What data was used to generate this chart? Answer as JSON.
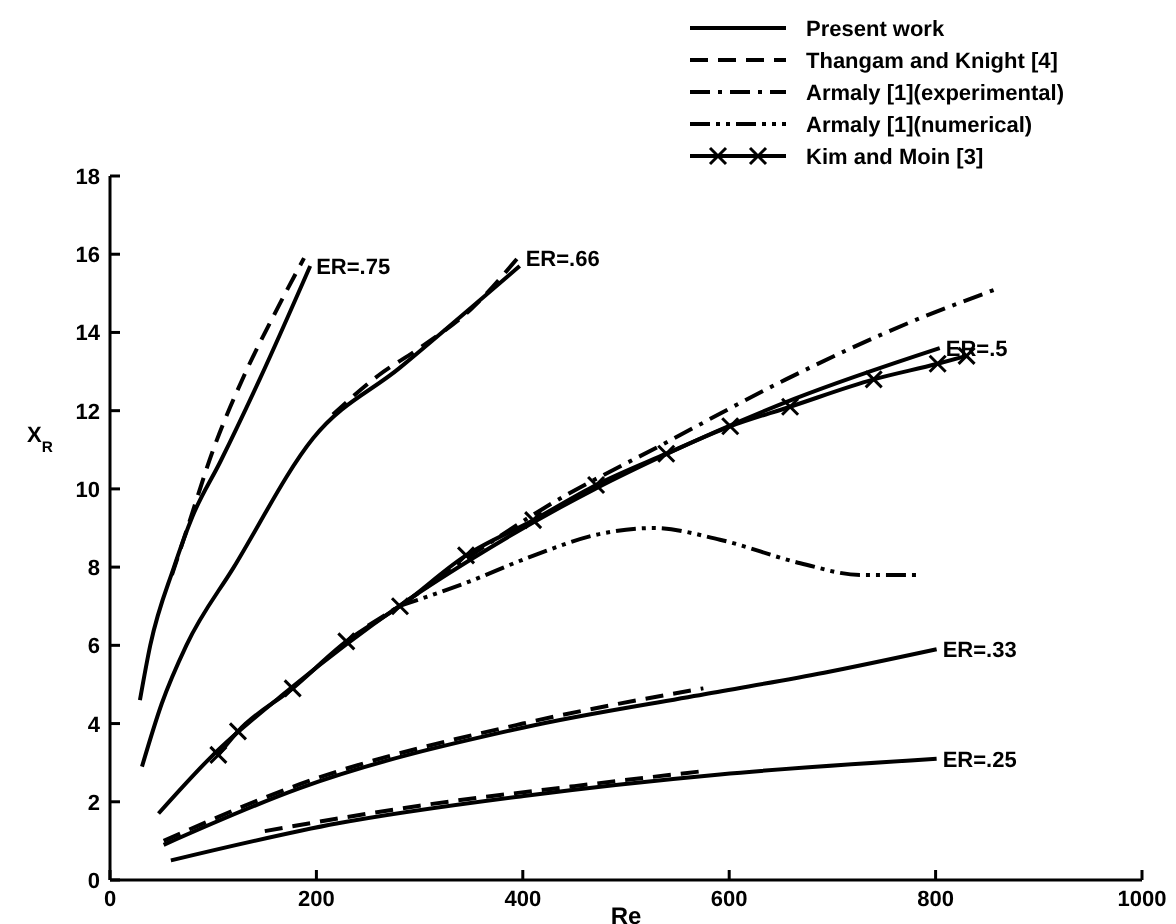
{
  "chart_data": {
    "type": "line",
    "xlabel": "Re",
    "ylabel": "X$_{R}$",
    "xlim": [
      0,
      1000
    ],
    "ylim": [
      0,
      18
    ],
    "xticks": [
      0,
      200,
      400,
      600,
      800,
      1000
    ],
    "yticks": [
      0,
      2,
      4,
      6,
      8,
      10,
      12,
      14,
      16,
      18
    ],
    "grid": false,
    "legend": "top right",
    "marker": "none",
    "series": [
      {
        "name": "Present work",
        "color": "#000000",
        "line_style": "solid",
        "x": [
          29,
          39,
          62,
          80,
          107,
          145,
          194
        ],
        "values": [
          4.6,
          6.0,
          8.0,
          9.3,
          10.7,
          12.8,
          15.7
        ]
      },
      {
        "name": "Thangam  and Knight [4]",
        "color": "#000000",
        "line_style": "dashed",
        "x": [
          60,
          75,
          100,
          130,
          160,
          188
        ],
        "values": [
          7.8,
          9.0,
          11.0,
          12.9,
          14.5,
          15.9
        ]
      },
      {
        "name": "Armaly [1](experimental)",
        "color": "#000000",
        "line_style": "dashdot",
        "x": [
          250,
          280,
          350,
          420,
          540,
          655,
          779,
          858
        ],
        "values": [
          6.5,
          7.0,
          8.3,
          9.5,
          11.2,
          12.8,
          14.3,
          15.1
        ]
      },
      {
        "name": "Armaly [1](numerical)",
        "color": "#000000",
        "line_style": "dashdotdot",
        "x": [
          280,
          345,
          411,
          475,
          527,
          591,
          669,
          727,
          785
        ],
        "values": [
          7.0,
          7.6,
          8.3,
          8.85,
          9.0,
          8.7,
          8.1,
          7.8,
          7.8
        ]
      },
      {
        "name": "Kim and Moin [3]",
        "color": "#000000",
        "line_style": "solid",
        "marker": "cross",
        "x": [
          105,
          124,
          177,
          229,
          281,
          345,
          410,
          471,
          539,
          601,
          659,
          740,
          802,
          830
        ],
        "values": [
          3.2,
          3.8,
          4.9,
          6.1,
          7.0,
          8.3,
          9.2,
          10.1,
          10.9,
          11.6,
          12.1,
          12.8,
          13.2,
          13.4
        ]
      },
      {
        "color": "#000000",
        "line_style": "solid",
        "x": [
          31,
          50,
          74,
          120,
          197,
          281,
          397
        ],
        "values": [
          2.9,
          4.5,
          6.0,
          8.0,
          11.3,
          13.1,
          15.7
        ]
      },
      {
        "color": "#000000",
        "line_style": "dashed",
        "x": [
          216,
          260,
          300,
          350,
          395
        ],
        "values": [
          11.9,
          12.9,
          13.6,
          14.6,
          15.9
        ]
      },
      {
        "color": "#000000",
        "line_style": "solid",
        "x": [
          47,
          100,
          175,
          280,
          350,
          470,
          540,
          663,
          804
        ],
        "values": [
          1.7,
          3.2,
          4.9,
          7.0,
          8.2,
          10.0,
          10.9,
          12.3,
          13.6
        ]
      },
      {
        "color": "#000000",
        "line_style": "solid",
        "x": [
          52,
          184,
          401,
          576,
          692,
          801
        ],
        "values": [
          0.9,
          2.35,
          3.9,
          4.75,
          5.3,
          5.9
        ]
      },
      {
        "color": "#000000",
        "line_style": "dashed",
        "x": [
          52,
          184,
          400,
          575
        ],
        "values": [
          1.0,
          2.45,
          4.0,
          4.9
        ]
      },
      {
        "color": "#000000",
        "line_style": "solid",
        "x": [
          59,
          221,
          401,
          591,
          801
        ],
        "values": [
          0.5,
          1.45,
          2.15,
          2.7,
          3.1
        ]
      },
      {
        "color": "#000000",
        "line_style": "dashed",
        "x": [
          150,
          300,
          450,
          580
        ],
        "values": [
          1.25,
          1.9,
          2.4,
          2.8
        ]
      }
    ],
    "annotations": [
      {
        "text": "ER=.75",
        "x": 194,
        "y": 15.7
      },
      {
        "text": "ER=.66",
        "x": 397,
        "y": 15.9
      },
      {
        "text": "ER=.5",
        "x": 804,
        "y": 13.6
      },
      {
        "text": "ER=.33",
        "x": 801,
        "y": 5.9
      },
      {
        "text": "ER=.25",
        "x": 801,
        "y": 3.1
      }
    ]
  }
}
